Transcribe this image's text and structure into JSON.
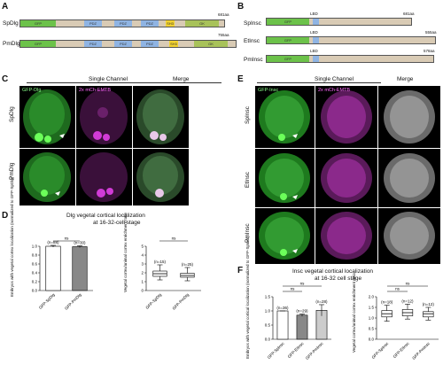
{
  "panels": {
    "A": "A",
    "B": "B",
    "C": "C",
    "D": "D",
    "E": "E",
    "F": "F"
  },
  "panelA": {
    "rows": [
      {
        "label": "SpDlg",
        "end": "681aa",
        "segments": [
          "GFP",
          "",
          "PDZ",
          "PDZ",
          "PDZ",
          "SH3",
          "GK"
        ]
      },
      {
        "label": "PmDlg",
        "end": "755aa",
        "segments": [
          "GFP",
          "",
          "PDZ",
          "PDZ",
          "PDZ",
          "SH3",
          "GK"
        ]
      }
    ]
  },
  "panelB": {
    "rows": [
      {
        "label": "SpInsc",
        "end": "681aa",
        "segments": [
          "GFP",
          "LBD"
        ]
      },
      {
        "label": "EtInsc",
        "end": "555aa",
        "segments": [
          "GFP",
          "LBD"
        ]
      },
      {
        "label": "PmInsc",
        "end": "578aa",
        "segments": [
          "GFP",
          "LBD"
        ]
      }
    ]
  },
  "panelC": {
    "header": "Single Channel",
    "col_labels": [
      "GFP-Dlg",
      "2x mCh-EMTB",
      "Merge"
    ],
    "row_labels": [
      "SpDlg",
      "PmDlg"
    ]
  },
  "panelE": {
    "header": "Single Channel",
    "col_labels": [
      "GFP-Insc",
      "2x mCh-EMTB",
      "Merge"
    ],
    "row_labels": [
      "SpInsc",
      "EtInsc",
      "PmInsc"
    ]
  },
  "panelD": {
    "title_line1": "Dlg vegetal cortical localization",
    "title_line2": "at 16-32-cell stage",
    "bar_ylabel": "Embryos with vegetal cortex localization (normalized to GFP-SpDlg)",
    "box_ylabel": "Vegetal cortex/animal cortex enrichment ratio",
    "sig_bar": "ns",
    "sig_box": "ns",
    "bar_yticks": [
      "1.0",
      "0.8",
      "0.6",
      "0.4",
      "0.2",
      "0.0"
    ],
    "box_yticks": [
      "5",
      "4",
      "3",
      "2",
      "1",
      "0"
    ],
    "categories": [
      "GFP-SpDlg",
      "GFP-PmDlg"
    ],
    "n_bar": [
      "(n=88)",
      "(n=30)"
    ],
    "n_box": [
      "(n=15)",
      "(n=25)"
    ]
  },
  "panelF": {
    "title_line1": "Insc vegetal cortical localization",
    "title_line2": "at 16-32 cell stage",
    "bar_ylabel": "Embryos with vegetal cortical localization (normalized to GFP-SpInsc)",
    "box_ylabel": "Vegetal cortex/animal cortex enrichment ratio",
    "sig_bar": [
      "ns",
      "ns"
    ],
    "sig_box": [
      "ns",
      "ns"
    ],
    "bar_yticks": [
      "1.5",
      "1.0",
      "0.5",
      "0.0"
    ],
    "box_yticks": [
      "2.0",
      "1.5",
      "1.0",
      "0.5",
      "0.0"
    ],
    "categories": [
      "GFP-SpInsc",
      "GFP-EtInsc",
      "GFP-PmInsc"
    ],
    "n_bar": [
      "(n=36)",
      "(n=29)",
      "(n=28)"
    ],
    "n_box": [
      "(n=18)",
      "(n=12)",
      "(n=12)"
    ]
  },
  "colors": {
    "gfp": "#6cc24a",
    "pdz": "#8fb4e3",
    "sh3": "#f2d230",
    "gk": "#a8c25a",
    "linker": "#d9cbb5",
    "green_channel": "#3fd63a",
    "magenta_channel": "#d13bd6"
  },
  "chart_data": [
    {
      "type": "bar",
      "title": "Dlg vegetal cortical localization at 16-32-cell stage",
      "categories": [
        "GFP-SpDlg",
        "GFP-PmDlg"
      ],
      "values": [
        1.0,
        0.99
      ],
      "ylabel": "Embryos with vegetal cortex localization (normalized to GFP-SpDlg)",
      "ylim": [
        0,
        1.0
      ]
    },
    {
      "type": "box",
      "categories": [
        "GFP-SpDlg",
        "GFP-PmDlg"
      ],
      "series": [
        {
          "min": 1.2,
          "q1": 1.6,
          "median": 1.9,
          "q3": 2.2,
          "max": 2.9
        },
        {
          "min": 1.1,
          "q1": 1.5,
          "median": 1.7,
          "q3": 1.95,
          "max": 2.6
        }
      ],
      "ylabel": "Vegetal cortex/animal cortex enrichment ratio",
      "ylim": [
        0,
        5
      ]
    },
    {
      "type": "bar",
      "title": "Insc vegetal cortical localization at 16-32 cell stage",
      "categories": [
        "GFP-SpInsc",
        "GFP-EtInsc",
        "GFP-PmInsc"
      ],
      "values": [
        1.0,
        0.85,
        1.02
      ],
      "errors": [
        0.0,
        0.04,
        0.2
      ],
      "ylabel": "Embryos with vegetal cortical localization (normalized to GFP-SpInsc)",
      "ylim": [
        0,
        1.5
      ]
    },
    {
      "type": "box",
      "categories": [
        "GFP-SpInsc",
        "GFP-EtInsc",
        "GFP-PmInsc"
      ],
      "series": [
        {
          "min": 0.85,
          "q1": 1.05,
          "median": 1.2,
          "q3": 1.35,
          "max": 1.6
        },
        {
          "min": 0.95,
          "q1": 1.1,
          "median": 1.25,
          "q3": 1.4,
          "max": 1.65
        },
        {
          "min": 0.9,
          "q1": 1.05,
          "median": 1.2,
          "q3": 1.3,
          "max": 1.5
        }
      ],
      "ylabel": "Vegetal cortex/animal cortex enrichment ratio",
      "ylim": [
        0,
        2.0
      ]
    }
  ]
}
